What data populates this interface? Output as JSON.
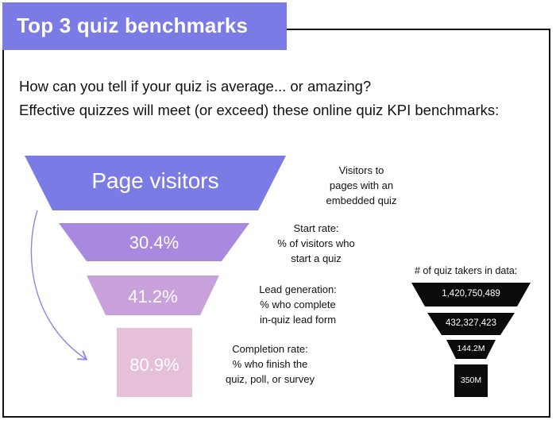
{
  "header": {
    "title": "Top 3 quiz benchmarks"
  },
  "intro": {
    "line1": "How can you tell if your quiz is average... or amazing?",
    "line2": "Effective quizzes will meet (or exceed) these online quiz KPI benchmarks:"
  },
  "funnel": {
    "stages": [
      {
        "label": "Page visitors",
        "note": [
          "Visitors to",
          "pages with an",
          "embedded quiz"
        ],
        "color": "#7b7be6"
      },
      {
        "label": "30.4%",
        "note": [
          "Start rate:",
          "%  of visitors who",
          "start a quiz"
        ],
        "color": "#a989e0"
      },
      {
        "label": "41.2%",
        "note": [
          "Lead generation:",
          "% who complete",
          "in-quiz lead form"
        ],
        "color": "#c9a2dc"
      },
      {
        "label": "80.9%",
        "note": [
          "Completion rate:",
          "% who finish the",
          "quiz, poll, or survey"
        ],
        "color": "#e6bfd9"
      }
    ],
    "arrow_color": "#8d86e0"
  },
  "takers": {
    "heading": "# of quiz takers in data:",
    "values": [
      "1,420,750,489",
      "432,327,423",
      "144.2M",
      "350M"
    ],
    "color": "#0b0b0b"
  }
}
